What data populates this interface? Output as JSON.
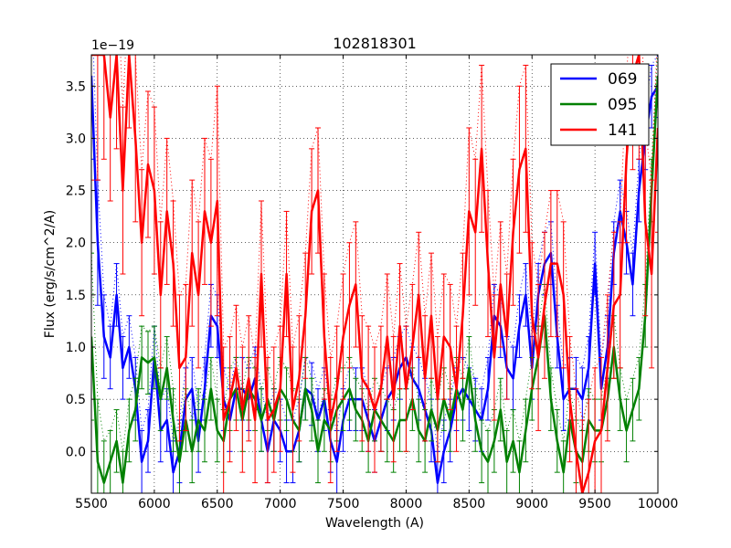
{
  "chart_data": {
    "type": "line",
    "title": "102818301",
    "xlabel": "Wavelength (A)",
    "ylabel": "Flux (erg/s/cm^2/A)",
    "offset_text": "1e−19",
    "xlim": [
      5500,
      10000
    ],
    "ylim": [
      -0.4,
      3.8
    ],
    "x_ticks": [
      5500,
      6000,
      6500,
      7000,
      7500,
      8000,
      8500,
      9000,
      9500,
      10000
    ],
    "x_tick_labels": [
      "5500",
      "6000",
      "6500",
      "7000",
      "7500",
      "8000",
      "8500",
      "9000",
      "9500",
      "10000"
    ],
    "y_ticks": [
      0.0,
      0.5,
      1.0,
      1.5,
      2.0,
      2.5,
      3.0,
      3.5
    ],
    "y_tick_labels": [
      "0.0",
      "0.5",
      "1.0",
      "1.5",
      "2.0",
      "2.5",
      "3.0",
      "3.5"
    ],
    "grid": true,
    "legend_position": "top-right",
    "series": [
      {
        "name": "069",
        "color": "#0000ff",
        "x": [
          5500,
          5550,
          5600,
          5650,
          5700,
          5750,
          5800,
          5850,
          5900,
          5950,
          6000,
          6050,
          6100,
          6150,
          6200,
          6250,
          6300,
          6350,
          6400,
          6450,
          6500,
          6550,
          6600,
          6650,
          6700,
          6750,
          6800,
          6850,
          6900,
          6950,
          7000,
          7050,
          7100,
          7150,
          7200,
          7250,
          7300,
          7350,
          7400,
          7450,
          7500,
          7550,
          7600,
          7650,
          7700,
          7750,
          7800,
          7850,
          7900,
          7950,
          8000,
          8050,
          8100,
          8150,
          8200,
          8250,
          8300,
          8350,
          8400,
          8450,
          8500,
          8550,
          8600,
          8650,
          8700,
          8750,
          8800,
          8850,
          8900,
          8950,
          9000,
          9050,
          9100,
          9150,
          9200,
          9250,
          9300,
          9350,
          9400,
          9450,
          9500,
          9550,
          9600,
          9650,
          9700,
          9750,
          9800,
          9850,
          9900,
          9950,
          10000
        ],
        "y": [
          3.6,
          2.0,
          1.1,
          0.9,
          1.5,
          0.8,
          1.0,
          0.6,
          -0.1,
          0.1,
          0.9,
          0.2,
          0.3,
          -0.2,
          0.0,
          0.5,
          0.6,
          0.1,
          0.6,
          1.3,
          1.2,
          0.5,
          0.3,
          0.6,
          0.6,
          0.5,
          0.7,
          0.3,
          0.0,
          0.3,
          0.2,
          0.0,
          0.0,
          0.2,
          0.6,
          0.55,
          0.3,
          0.5,
          0.1,
          -0.1,
          0.3,
          0.5,
          0.5,
          0.5,
          0.3,
          0.1,
          0.3,
          0.5,
          0.6,
          0.8,
          0.9,
          0.7,
          0.6,
          0.4,
          0.2,
          -0.3,
          0.0,
          0.2,
          0.5,
          0.6,
          0.5,
          0.4,
          0.3,
          0.6,
          1.3,
          1.2,
          0.8,
          0.7,
          1.2,
          1.5,
          0.8,
          1.5,
          1.8,
          1.9,
          1.1,
          0.5,
          0.6,
          0.6,
          0.5,
          0.8,
          1.8,
          0.6,
          1.0,
          1.9,
          2.3,
          2.0,
          1.6,
          2.5,
          3.0,
          3.4,
          3.5
        ],
        "err": [
          0.8,
          0.6,
          0.4,
          0.3,
          0.3,
          0.3,
          0.3,
          0.3,
          0.3,
          0.3,
          0.3,
          0.3,
          0.3,
          0.3,
          0.3,
          0.3,
          0.3,
          0.3,
          0.3,
          0.3,
          0.3,
          0.3,
          0.3,
          0.3,
          0.3,
          0.3,
          0.3,
          0.3,
          0.3,
          0.3,
          0.3,
          0.3,
          0.3,
          0.3,
          0.3,
          0.3,
          0.3,
          0.3,
          0.3,
          0.3,
          0.3,
          0.3,
          0.3,
          0.3,
          0.3,
          0.3,
          0.3,
          0.3,
          0.3,
          0.3,
          0.3,
          0.3,
          0.3,
          0.3,
          0.3,
          0.3,
          0.3,
          0.3,
          0.3,
          0.3,
          0.3,
          0.3,
          0.3,
          0.3,
          0.3,
          0.3,
          0.3,
          0.3,
          0.3,
          0.3,
          0.3,
          0.3,
          0.3,
          0.3,
          0.3,
          0.3,
          0.3,
          0.3,
          0.3,
          0.3,
          0.3,
          0.3,
          0.3,
          0.3,
          0.3,
          0.3,
          0.3,
          0.3,
          0.3,
          0.3,
          0.3
        ]
      },
      {
        "name": "095",
        "color": "#008000",
        "x": [
          5500,
          5550,
          5600,
          5650,
          5700,
          5750,
          5800,
          5850,
          5900,
          5950,
          6000,
          6050,
          6100,
          6150,
          6200,
          6250,
          6300,
          6350,
          6400,
          6450,
          6500,
          6550,
          6600,
          6650,
          6700,
          6750,
          6800,
          6850,
          6900,
          6950,
          7000,
          7050,
          7100,
          7150,
          7200,
          7250,
          7300,
          7350,
          7400,
          7450,
          7500,
          7550,
          7600,
          7650,
          7700,
          7750,
          7800,
          7850,
          7900,
          7950,
          8000,
          8050,
          8100,
          8150,
          8200,
          8250,
          8300,
          8350,
          8400,
          8450,
          8500,
          8550,
          8600,
          8650,
          8700,
          8750,
          8800,
          8850,
          8900,
          8950,
          9000,
          9050,
          9100,
          9150,
          9200,
          9250,
          9300,
          9350,
          9400,
          9450,
          9500,
          9550,
          9600,
          9650,
          9700,
          9750,
          9800,
          9850,
          9900,
          9950,
          10000
        ],
        "y": [
          1.1,
          -0.1,
          -0.3,
          -0.1,
          0.1,
          -0.3,
          0.2,
          0.4,
          0.9,
          0.85,
          0.9,
          0.5,
          0.8,
          0.3,
          -0.1,
          0.3,
          0.0,
          0.3,
          0.2,
          0.6,
          0.2,
          0.1,
          0.5,
          0.6,
          0.3,
          0.6,
          0.5,
          0.3,
          0.5,
          0.3,
          0.6,
          0.5,
          0.3,
          0.2,
          0.6,
          0.4,
          0.0,
          0.3,
          0.2,
          0.4,
          0.5,
          0.6,
          0.4,
          0.3,
          0.1,
          0.4,
          0.3,
          0.2,
          0.1,
          0.3,
          0.3,
          0.5,
          0.2,
          0.1,
          0.4,
          0.2,
          0.5,
          0.3,
          0.6,
          0.4,
          0.8,
          0.3,
          0.0,
          -0.1,
          0.1,
          0.4,
          -0.1,
          0.1,
          -0.2,
          0.2,
          0.6,
          0.9,
          1.3,
          0.5,
          0.1,
          -0.2,
          0.3,
          0.0,
          -0.1,
          0.3,
          0.2,
          0.2,
          0.5,
          1.0,
          0.5,
          0.2,
          0.4,
          0.6,
          1.3,
          2.5,
          3.6
        ],
        "err": [
          0.8,
          0.6,
          0.4,
          0.3,
          0.3,
          0.3,
          0.3,
          0.3,
          0.3,
          0.3,
          0.3,
          0.3,
          0.3,
          0.3,
          0.3,
          0.3,
          0.3,
          0.3,
          0.3,
          0.3,
          0.3,
          0.3,
          0.3,
          0.3,
          0.3,
          0.3,
          0.3,
          0.3,
          0.3,
          0.3,
          0.3,
          0.3,
          0.3,
          0.3,
          0.3,
          0.3,
          0.3,
          0.3,
          0.3,
          0.3,
          0.3,
          0.3,
          0.3,
          0.3,
          0.3,
          0.3,
          0.3,
          0.3,
          0.3,
          0.3,
          0.3,
          0.3,
          0.3,
          0.3,
          0.3,
          0.3,
          0.3,
          0.3,
          0.3,
          0.3,
          0.3,
          0.3,
          0.3,
          0.3,
          0.3,
          0.3,
          0.3,
          0.3,
          0.3,
          0.3,
          0.3,
          0.3,
          0.3,
          0.3,
          0.3,
          0.3,
          0.3,
          0.3,
          0.3,
          0.3,
          0.3,
          0.3,
          0.3,
          0.3,
          0.3,
          0.3,
          0.3,
          0.3,
          0.3,
          0.3,
          0.3
        ]
      },
      {
        "name": "141",
        "color": "#ff0000",
        "x": [
          5500,
          5550,
          5600,
          5650,
          5700,
          5750,
          5800,
          5850,
          5900,
          5950,
          6000,
          6050,
          6100,
          6150,
          6200,
          6250,
          6300,
          6350,
          6400,
          6450,
          6500,
          6550,
          6600,
          6650,
          6700,
          6750,
          6800,
          6850,
          6900,
          6950,
          7000,
          7050,
          7100,
          7150,
          7200,
          7250,
          7300,
          7350,
          7400,
          7450,
          7500,
          7550,
          7600,
          7650,
          7700,
          7750,
          7800,
          7850,
          7900,
          7950,
          8000,
          8050,
          8100,
          8150,
          8200,
          8250,
          8300,
          8350,
          8400,
          8450,
          8500,
          8550,
          8600,
          8650,
          8700,
          8750,
          8800,
          8850,
          8900,
          8950,
          9000,
          9050,
          9100,
          9150,
          9200,
          9250,
          9300,
          9350,
          9400,
          9450,
          9500,
          9550,
          9600,
          9650,
          9700,
          9750,
          9800,
          9850,
          9900,
          9950,
          10000
        ],
        "y": [
          3.8,
          3.8,
          3.8,
          3.2,
          3.8,
          2.5,
          3.8,
          3.0,
          2.0,
          2.75,
          2.5,
          1.5,
          2.3,
          1.8,
          0.8,
          0.9,
          1.9,
          1.5,
          2.3,
          2.0,
          2.4,
          0.3,
          0.5,
          0.8,
          0.4,
          0.7,
          0.3,
          1.7,
          0.3,
          0.4,
          0.6,
          1.7,
          0.4,
          0.7,
          1.3,
          2.3,
          2.5,
          1.1,
          0.3,
          0.6,
          1.1,
          1.4,
          1.6,
          0.7,
          0.6,
          0.4,
          0.6,
          1.1,
          0.5,
          1.2,
          0.6,
          1.0,
          1.5,
          0.7,
          1.3,
          0.5,
          1.1,
          1.0,
          0.6,
          1.3,
          2.3,
          2.1,
          2.9,
          1.8,
          0.9,
          1.6,
          1.1,
          2.1,
          2.7,
          2.9,
          1.3,
          0.9,
          1.4,
          1.8,
          1.8,
          1.5,
          0.5,
          0.0,
          -0.4,
          -0.2,
          0.1,
          0.2,
          0.8,
          1.4,
          1.5,
          2.8,
          3.6,
          3.8,
          2.2,
          1.7,
          3.1
        ],
        "err": [
          1.2,
          1.2,
          1.0,
          0.8,
          0.9,
          0.8,
          0.7,
          0.8,
          0.7,
          0.7,
          0.8,
          0.7,
          0.7,
          0.6,
          0.7,
          0.7,
          0.7,
          0.7,
          0.7,
          0.8,
          1.1,
          0.7,
          0.6,
          0.6,
          0.6,
          0.6,
          0.6,
          0.7,
          0.6,
          0.6,
          0.6,
          0.6,
          0.6,
          0.6,
          0.6,
          0.6,
          0.6,
          0.6,
          0.6,
          0.6,
          0.6,
          0.6,
          0.6,
          0.6,
          0.6,
          0.6,
          0.6,
          0.6,
          0.6,
          0.6,
          0.6,
          0.6,
          0.6,
          0.6,
          0.6,
          0.6,
          0.6,
          0.6,
          0.6,
          0.6,
          0.8,
          0.7,
          0.8,
          0.7,
          0.6,
          0.6,
          0.6,
          0.7,
          0.8,
          0.8,
          0.7,
          0.7,
          0.7,
          0.7,
          0.7,
          0.7,
          0.6,
          0.6,
          0.7,
          0.7,
          0.7,
          0.7,
          0.7,
          0.7,
          0.7,
          0.8,
          0.9,
          1.0,
          0.9,
          0.9,
          1.0
        ]
      }
    ]
  }
}
